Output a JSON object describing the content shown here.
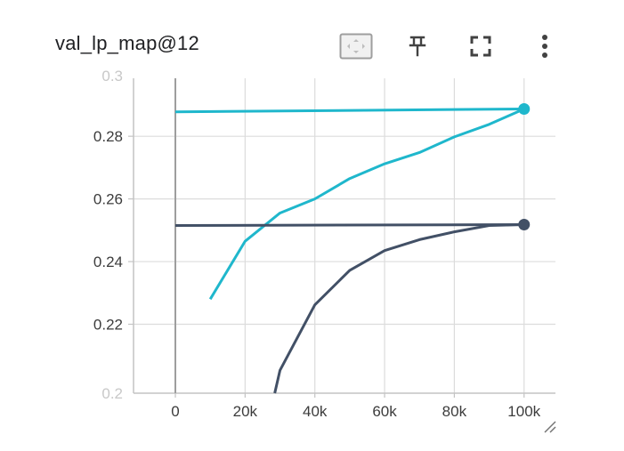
{
  "card": {
    "title": "val_lp_map@12"
  },
  "toolbar": {
    "fit_icon": "fit-domain-icon",
    "pin_icon": "pin-icon",
    "fullscreen_icon": "fullscreen-icon",
    "more_icon": "more-vertical-icon"
  },
  "chart_data": {
    "type": "line",
    "title": "val_lp_map@12",
    "xlabel": "",
    "ylabel": "",
    "xlim": [
      -12000,
      109000
    ],
    "ylim": [
      0.198,
      0.2985
    ],
    "x_ticks": [
      0,
      20000,
      40000,
      60000,
      80000,
      100000
    ],
    "x_tick_labels": [
      "0",
      "20k",
      "40k",
      "60k",
      "80k",
      "100k"
    ],
    "y_ticks": [
      0.22,
      0.24,
      0.26,
      0.28
    ],
    "y_tick_labels": [
      "0.22",
      "0.24",
      "0.26",
      "0.28"
    ],
    "y_tick_labels_partial": [
      "0.2",
      "0.3"
    ],
    "grid": true,
    "legend": "none",
    "series": [
      {
        "color": "#1fb7cc",
        "x": [
          10000,
          20000,
          30000,
          40000,
          50000,
          60000,
          70000,
          80000,
          90000,
          100000
        ],
        "values": [
          0.228,
          0.2465,
          0.2555,
          0.26,
          0.2665,
          0.2712,
          0.2748,
          0.2798,
          0.2838,
          0.2887
        ]
      },
      {
        "color": "#1fb7cc",
        "x": [
          0,
          100000
        ],
        "values": [
          0.2878,
          0.2887
        ]
      },
      {
        "color": "#425066",
        "x": [
          28500,
          30000,
          40000,
          50000,
          60000,
          70000,
          80000,
          90000,
          100000
        ],
        "values": [
          0.198,
          0.2053,
          0.2262,
          0.2372,
          0.2435,
          0.247,
          0.2495,
          0.2515,
          0.2518
        ]
      },
      {
        "color": "#425066",
        "x": [
          0,
          100000
        ],
        "values": [
          0.2515,
          0.2518
        ]
      }
    ],
    "endpoint_markers": [
      {
        "x": 100000,
        "y": 0.2887,
        "color": "#1fb7cc"
      },
      {
        "x": 100000,
        "y": 0.2518,
        "color": "#425066"
      }
    ]
  }
}
